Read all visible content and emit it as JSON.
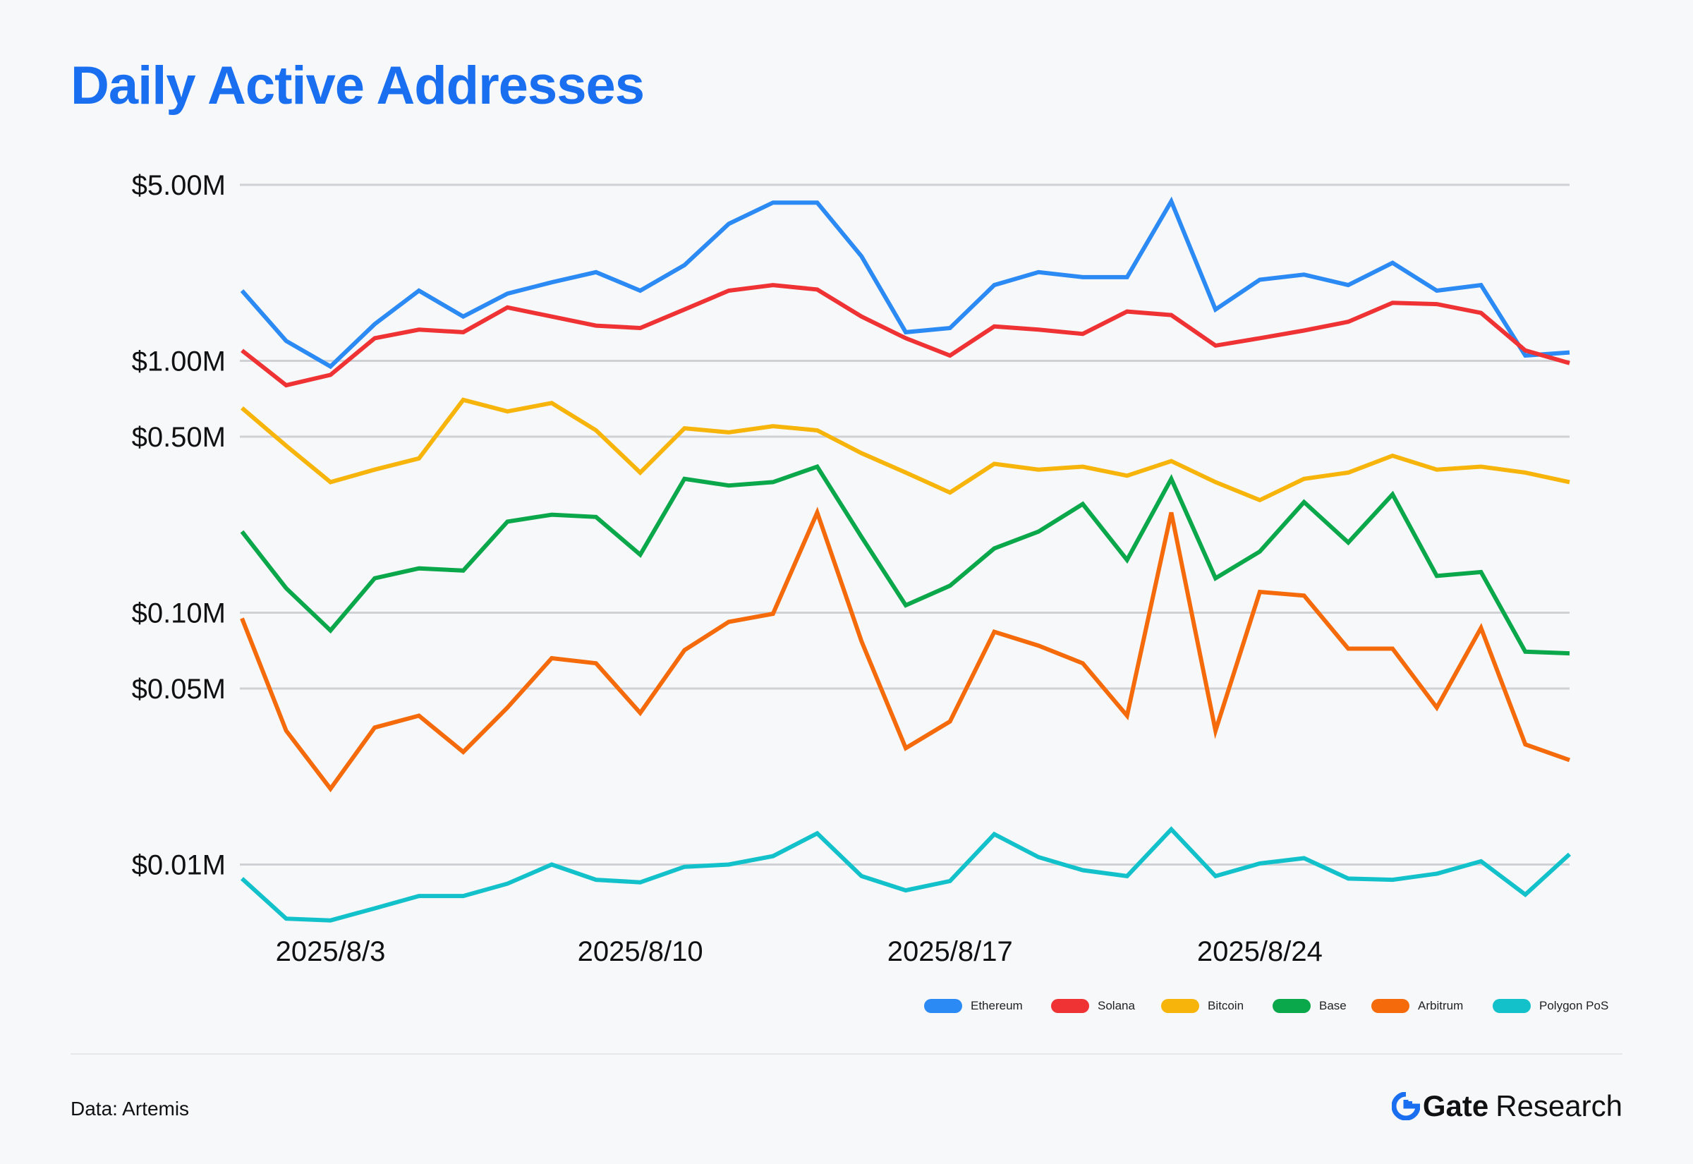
{
  "title": "Daily Active Addresses",
  "footer": {
    "source": "Data: Artemis",
    "brand_main": "Gate",
    "brand_sub": "Research"
  },
  "colors": {
    "title": "#1a6ff0",
    "Ethereum": "#2b8af3",
    "Solana": "#ef3233",
    "Bitcoin": "#f7b40a",
    "Base": "#0aa84a",
    "Arbitrum": "#f56a0a",
    "Polygon PoS": "#13c1cb",
    "brand_logo": "#1a6ff0"
  },
  "chart_data": {
    "type": "line",
    "y_scale": "log",
    "ylim": [
      0.006,
      5.0
    ],
    "x": [
      "2025/8/1",
      "2025/8/2",
      "2025/8/3",
      "2025/8/4",
      "2025/8/5",
      "2025/8/6",
      "2025/8/7",
      "2025/8/8",
      "2025/8/9",
      "2025/8/10",
      "2025/8/11",
      "2025/8/12",
      "2025/8/13",
      "2025/8/14",
      "2025/8/15",
      "2025/8/16",
      "2025/8/17",
      "2025/8/18",
      "2025/8/19",
      "2025/8/20",
      "2025/8/21",
      "2025/8/22",
      "2025/8/23",
      "2025/8/24",
      "2025/8/25",
      "2025/8/26",
      "2025/8/27",
      "2025/8/28",
      "2025/8/29",
      "2025/8/30",
      "2025/8/31"
    ],
    "x_ticks": [
      "2025/8/3",
      "2025/8/10",
      "2025/8/17",
      "2025/8/24"
    ],
    "y_ticks": [
      {
        "value": 5.0,
        "label": "$5.00M"
      },
      {
        "value": 1.0,
        "label": "$1.00M"
      },
      {
        "value": 0.5,
        "label": "$0.50M"
      },
      {
        "value": 0.1,
        "label": "$0.10M"
      },
      {
        "value": 0.05,
        "label": "$0.05M"
      },
      {
        "value": 0.01,
        "label": "$0.01M"
      }
    ],
    "grid": true,
    "legend_position": "bottom-right",
    "series": [
      {
        "name": "Ethereum",
        "values": [
          1.9,
          1.2,
          0.95,
          1.4,
          1.9,
          1.5,
          1.85,
          2.05,
          2.25,
          1.9,
          2.4,
          3.5,
          4.25,
          4.25,
          2.6,
          1.3,
          1.35,
          2.0,
          2.25,
          2.15,
          2.15,
          4.3,
          1.6,
          2.1,
          2.2,
          2.0,
          2.45,
          1.9,
          2.0,
          1.05,
          1.08
        ]
      },
      {
        "name": "Solana",
        "values": [
          1.1,
          0.8,
          0.88,
          1.23,
          1.33,
          1.3,
          1.63,
          1.5,
          1.38,
          1.35,
          1.6,
          1.9,
          2.0,
          1.92,
          1.5,
          1.23,
          1.05,
          1.37,
          1.33,
          1.28,
          1.57,
          1.52,
          1.15,
          1.23,
          1.32,
          1.43,
          1.7,
          1.68,
          1.55,
          1.1,
          0.98
        ]
      },
      {
        "name": "Bitcoin",
        "values": [
          0.65,
          0.46,
          0.33,
          0.37,
          0.41,
          0.7,
          0.63,
          0.68,
          0.53,
          0.36,
          0.54,
          0.52,
          0.55,
          0.53,
          0.43,
          0.36,
          0.3,
          0.39,
          0.37,
          0.38,
          0.35,
          0.4,
          0.33,
          0.28,
          0.34,
          0.36,
          0.42,
          0.37,
          0.38,
          0.36,
          0.33
        ]
      },
      {
        "name": "Base",
        "values": [
          0.21,
          0.125,
          0.085,
          0.137,
          0.15,
          0.147,
          0.23,
          0.245,
          0.24,
          0.17,
          0.34,
          0.32,
          0.33,
          0.38,
          0.2,
          0.107,
          0.128,
          0.18,
          0.21,
          0.27,
          0.162,
          0.34,
          0.137,
          0.175,
          0.275,
          0.19,
          0.295,
          0.14,
          0.145,
          0.07,
          0.069
        ]
      },
      {
        "name": "Arbitrum",
        "values": [
          0.095,
          0.034,
          0.02,
          0.035,
          0.039,
          0.028,
          0.042,
          0.066,
          0.063,
          0.04,
          0.071,
          0.092,
          0.099,
          0.25,
          0.077,
          0.029,
          0.037,
          0.084,
          0.074,
          0.063,
          0.039,
          0.25,
          0.034,
          0.121,
          0.117,
          0.072,
          0.072,
          0.042,
          0.087,
          0.03,
          0.026
        ]
      },
      {
        "name": "Polygon PoS",
        "values": [
          0.0088,
          0.0061,
          0.006,
          0.0067,
          0.0075,
          0.0075,
          0.0084,
          0.01,
          0.0087,
          0.0085,
          0.0098,
          0.01,
          0.0108,
          0.0133,
          0.009,
          0.0079,
          0.0086,
          0.0132,
          0.0107,
          0.0095,
          0.009,
          0.0138,
          0.009,
          0.0101,
          0.0106,
          0.0088,
          0.0087,
          0.0092,
          0.0103,
          0.0076,
          0.011
        ]
      }
    ]
  }
}
